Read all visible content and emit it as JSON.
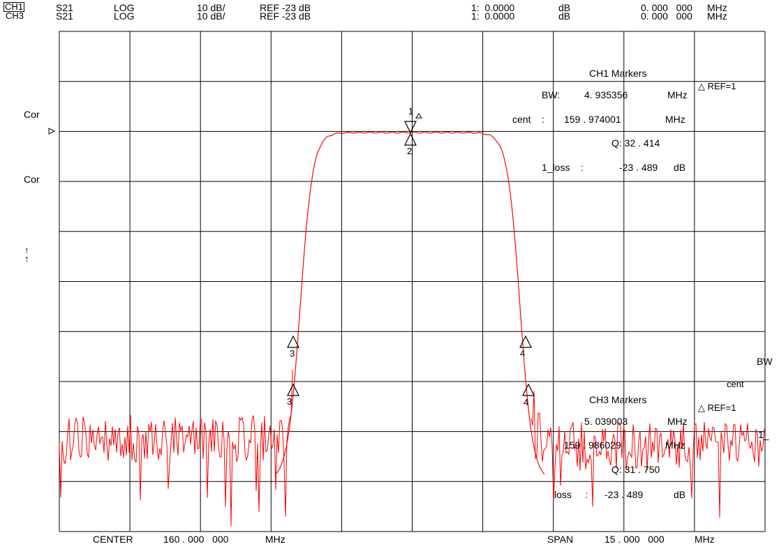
{
  "header": {
    "ch1": "CH1",
    "ch3": "CH3",
    "param1": "S21",
    "param3": "S21",
    "fmt1": "LOG",
    "fmt3": "LOG",
    "scale1": "10 dB/",
    "scale3": "10 dB/",
    "ref1": "REF -23 dB",
    "ref3": "REF -23 dB",
    "mk1": "1:  0.0000",
    "mk3": "1:  0.0000",
    "unit1": "dB",
    "unit3": "dB",
    "freq1": "0. 000   000",
    "freq3": "0. 000   000",
    "funit1": "MHz",
    "funit3": "MHz"
  },
  "left_labels": {
    "cor1": "Cor",
    "cor2": "Cor",
    "arrow1": "↑",
    "arrow2": "↑"
  },
  "ch1_markers": {
    "title": "CH1   Markers",
    "ref": "△ REF=1",
    "bw_label": "BW:",
    "bw_value": "4. 935356",
    "bw_unit": "MHz",
    "cent_label": "cent    :",
    "cent_value": "159 . 974001",
    "cent_unit": "MHz",
    "q": "Q: 32 . 414",
    "loss_label": "1_loss    :",
    "loss_value": "-23 . 489",
    "loss_unit": "dB"
  },
  "ch3_markers": {
    "title": "CH3   Markers",
    "ref": "△ REF=1",
    "bw_value": "5. 039003",
    "bw_unit": "MHz",
    "cent_value": "159 . 986029",
    "cent_unit": "MHz",
    "q": "Q: 31 . 750",
    "loss_label": "loss     :",
    "loss_value": "-23 . 489",
    "loss_unit": "dB"
  },
  "right_edge": {
    "bw": "BW",
    "cent": "cent",
    "one": "1_"
  },
  "marker_labels": [
    "1",
    "2",
    "3",
    "3",
    "4",
    "4"
  ],
  "footer": {
    "center_label": "CENTER",
    "center_value": "160 . 000   000",
    "center_unit": "MHz",
    "span_label": "SPAN",
    "span_value": "15 . 000   000",
    "span_unit": "MHz"
  },
  "trace_color": "#ff0000",
  "grid_color": "#000000"
}
